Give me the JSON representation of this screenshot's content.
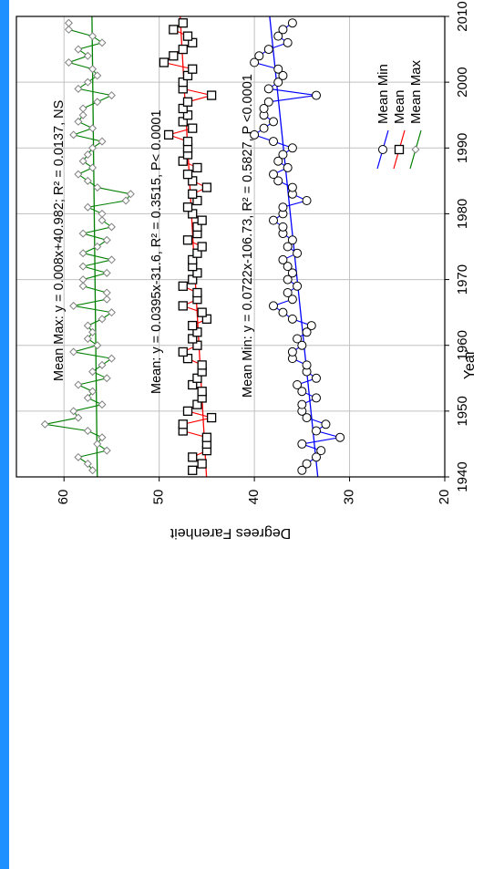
{
  "colors": {
    "accent": "#1e90ff",
    "background": "#ffffff",
    "grid": "#c0c0c0",
    "frame": "#000000"
  },
  "chart_data": {
    "type": "line",
    "rotated": "90deg clockwise",
    "xlabel": "Year",
    "ylabel": "Degrees Farenheit",
    "xlim": [
      1940,
      2010
    ],
    "ylim": [
      20,
      65
    ],
    "x_ticks": [
      1940,
      1950,
      1960,
      1970,
      1980,
      1990,
      2000,
      2010
    ],
    "y_ticks": [
      20,
      30,
      40,
      50,
      60
    ],
    "grid": true,
    "legend_placement": "right",
    "annotations": {
      "max": "Mean Max: y = 0.008x+40.982; R² = 0.0137, NS",
      "mean": "Mean: y = 0.0395x-31.6, R² = 0.3515, P< 0.0001",
      "min": "Mean Min: y = 0.0722x-106.73, R² = 0.5827, P <0.0001"
    },
    "series": [
      {
        "name": "Mean Max",
        "color": "#008000",
        "marker": "diamond",
        "trend": [
          40.982,
          0.008
        ],
        "x": [
          1941,
          1942,
          1943,
          1944,
          1945,
          1946,
          1947,
          1948,
          1949,
          1950,
          1951,
          1952,
          1953,
          1954,
          1955,
          1956,
          1957,
          1958,
          1959,
          1960,
          1961,
          1962,
          1963,
          1964,
          1965,
          1966,
          1967,
          1968,
          1969,
          1970,
          1971,
          1972,
          1973,
          1974,
          1975,
          1976,
          1977,
          1978,
          1979,
          1980,
          1981,
          1982,
          1983,
          1984,
          1985,
          1986,
          1987,
          1988,
          1989,
          1990,
          1991,
          1992,
          1993,
          1994,
          1995,
          1996,
          1997,
          1998,
          1999,
          2000,
          2001,
          2002,
          2003,
          2004,
          2005,
          2006,
          2007,
          2008,
          2009
        ],
        "y": [
          57.0,
          57.5,
          58.5,
          55.5,
          56.5,
          56.0,
          57.5,
          62.0,
          58.5,
          59.0,
          56.0,
          57.5,
          57.0,
          58.5,
          55.5,
          57.0,
          56.0,
          55.0,
          59.0,
          56.5,
          57.5,
          57.0,
          57.5,
          56.0,
          55.0,
          59.0,
          55.5,
          55.5,
          58.0,
          58.0,
          55.5,
          58.0,
          55.0,
          58.0,
          56.5,
          55.5,
          58.0,
          55.0,
          56.0,
          56.0,
          57.5,
          53.5,
          53.0,
          56.5,
          57.5,
          58.5,
          57.0,
          58.0,
          57.5,
          57.0,
          56.0,
          59.0,
          57.0,
          58.5,
          58.0,
          58.0,
          56.5,
          55.0,
          58.5,
          57.5,
          56.5,
          57.0,
          59.5,
          57.5,
          58.5,
          56.0,
          57.0,
          59.5,
          59.5
        ]
      },
      {
        "name": "Mean",
        "color": "#ff0000",
        "marker": "square",
        "trend": [
          -31.6,
          0.0395
        ],
        "x": [
          1941,
          1942,
          1943,
          1944,
          1945,
          1946,
          1947,
          1948,
          1949,
          1950,
          1951,
          1952,
          1953,
          1954,
          1955,
          1956,
          1957,
          1958,
          1959,
          1960,
          1961,
          1962,
          1963,
          1964,
          1965,
          1966,
          1967,
          1968,
          1969,
          1970,
          1971,
          1972,
          1973,
          1974,
          1975,
          1976,
          1977,
          1978,
          1979,
          1980,
          1981,
          1982,
          1983,
          1984,
          1985,
          1986,
          1987,
          1988,
          1989,
          1990,
          1991,
          1992,
          1993,
          1994,
          1995,
          1996,
          1997,
          1998,
          1999,
          2000,
          2001,
          2002,
          2003,
          2004,
          2005,
          2006,
          2007,
          2008,
          2009
        ],
        "y": [
          46.5,
          45.5,
          46.5,
          45.0,
          45.0,
          45.0,
          47.5,
          47.5,
          44.5,
          47.0,
          46.0,
          45.5,
          45.5,
          46.5,
          46.0,
          45.5,
          45.5,
          47.0,
          47.5,
          46.0,
          46.5,
          46.0,
          46.5,
          45.0,
          45.5,
          47.5,
          46.0,
          46.0,
          47.5,
          46.5,
          46.0,
          46.5,
          46.5,
          46.0,
          45.5,
          47.0,
          46.0,
          46.0,
          45.5,
          46.5,
          47.0,
          46.0,
          46.5,
          45.0,
          46.5,
          47.0,
          46.0,
          47.5,
          47.0,
          47.0,
          47.0,
          49.0,
          46.5,
          47.5,
          47.0,
          47.5,
          47.0,
          44.5,
          47.5,
          47.5,
          47.0,
          46.5,
          49.5,
          48.5,
          47.5,
          46.5,
          47.0,
          48.5,
          47.5
        ]
      },
      {
        "name": "Mean Min",
        "color": "#0000ff",
        "marker": "circle",
        "trend": [
          -106.73,
          0.0722
        ],
        "x": [
          1941,
          1942,
          1943,
          1944,
          1945,
          1946,
          1947,
          1948,
          1949,
          1950,
          1951,
          1952,
          1953,
          1954,
          1955,
          1956,
          1957,
          1958,
          1959,
          1960,
          1961,
          1962,
          1963,
          1964,
          1965,
          1966,
          1967,
          1968,
          1969,
          1970,
          1971,
          1972,
          1973,
          1974,
          1975,
          1976,
          1977,
          1978,
          1979,
          1980,
          1981,
          1982,
          1983,
          1984,
          1985,
          1986,
          1987,
          1988,
          1989,
          1990,
          1991,
          1992,
          1993,
          1994,
          1995,
          1996,
          1997,
          1998,
          1999,
          2000,
          2001,
          2002,
          2003,
          2004,
          2005,
          2006,
          2007,
          2008,
          2009
        ],
        "y": [
          35.0,
          34.5,
          33.5,
          33.0,
          35.0,
          31.0,
          33.5,
          32.5,
          34.5,
          35.0,
          35.0,
          33.5,
          35.0,
          35.5,
          33.5,
          34.5,
          34.5,
          36.0,
          36.0,
          35.0,
          35.5,
          34.5,
          34.0,
          36.0,
          37.0,
          38.0,
          36.0,
          36.5,
          35.5,
          36.5,
          36.0,
          36.5,
          37.0,
          35.5,
          36.5,
          36.0,
          37.0,
          37.0,
          38.0,
          37.0,
          37.0,
          34.5,
          36.0,
          36.0,
          37.5,
          38.0,
          36.5,
          37.5,
          37.0,
          36.0,
          38.0,
          40.0,
          39.0,
          38.0,
          39.0,
          39.0,
          38.5,
          33.5,
          38.5,
          37.5,
          37.0,
          37.5,
          40.0,
          39.5,
          38.5,
          36.5,
          37.5,
          37.0,
          36.0
        ]
      }
    ]
  }
}
